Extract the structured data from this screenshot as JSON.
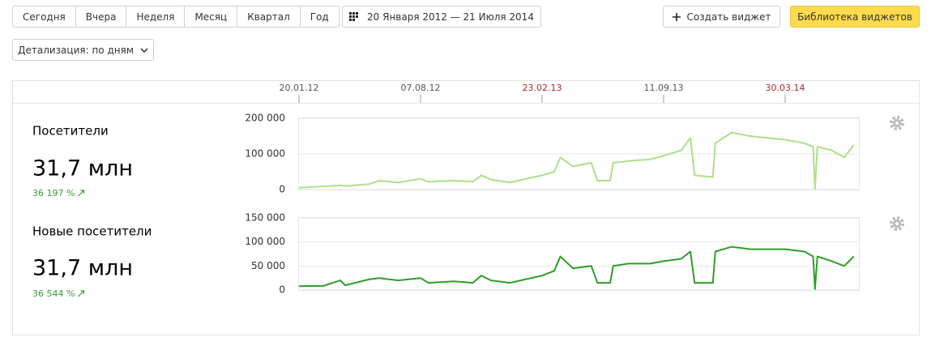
{
  "toolbar": {
    "periods": [
      "Сегодня",
      "Вчера",
      "Неделя",
      "Месяц",
      "Квартал",
      "Год"
    ],
    "date_range": "20 Января 2012 — 21 Июля 2014",
    "create_widget": "Создать виджет",
    "widget_library": "Библиотека виджетов",
    "detail": "Детализация: по дням"
  },
  "timeline": {
    "ticks": [
      {
        "label": "20.01.12",
        "color": "#555555"
      },
      {
        "label": "07.08.12",
        "color": "#555555"
      },
      {
        "label": "23.02.13",
        "color": "#a52a2a"
      },
      {
        "label": "11.09.13",
        "color": "#555555"
      },
      {
        "label": "30.03.14",
        "color": "#a52a2a"
      }
    ]
  },
  "chart_data": [
    {
      "type": "line",
      "title": "Посетители",
      "total": "31,7 млн",
      "change": "36 197 %",
      "color": "#ace08a",
      "xlim": [
        "20.01.12",
        "21.07.14"
      ],
      "x": [
        "20.01.12",
        "01.03.12",
        "28.03.12",
        "05.04.12",
        "14.05.12",
        "31.05.12",
        "01.07.12",
        "07.08.12",
        "20.08.12",
        "01.10.12",
        "01.11.12",
        "15.11.12",
        "01.12.12",
        "01.01.13",
        "23.02.13",
        "15.03.13",
        "25.03.13",
        "15.04.13",
        "15.05.13",
        "25.05.13",
        "15.06.13",
        "20.06.13",
        "15.07.13",
        "20.08.13",
        "11.09.13",
        "10.10.13",
        "25.10.13",
        "01.11.13",
        "01.12.13",
        "05.12.13",
        "01.01.14",
        "01.02.14",
        "01.03.14",
        "30.03.14",
        "01.05.14",
        "15.05.14",
        "18.05.14",
        "22.05.14",
        "15.06.14",
        "05.07.14",
        "21.07.14"
      ],
      "values": [
        5000,
        9000,
        12000,
        10000,
        15000,
        25000,
        20000,
        30000,
        22000,
        25000,
        22000,
        40000,
        28000,
        20000,
        40000,
        50000,
        90000,
        65000,
        75000,
        25000,
        25000,
        75000,
        80000,
        85000,
        95000,
        110000,
        145000,
        40000,
        35000,
        130000,
        160000,
        150000,
        145000,
        140000,
        130000,
        120000,
        2000,
        120000,
        110000,
        90000,
        125000
      ],
      "ylim": [
        0,
        200000
      ],
      "yticks": [
        0,
        {
          "value": 100000,
          "label": "100 000"
        },
        {
          "value": 200000,
          "label": "200 000"
        }
      ]
    },
    {
      "type": "line",
      "title": "Новые посетители",
      "total": "31,7 млн",
      "change": "36 544 %",
      "color": "#2e9e26",
      "xlim": [
        "20.01.12",
        "21.07.14"
      ],
      "x": [
        "20.01.12",
        "01.03.12",
        "28.03.12",
        "05.04.12",
        "14.05.12",
        "31.05.12",
        "01.07.12",
        "07.08.12",
        "20.08.12",
        "01.10.12",
        "01.11.12",
        "15.11.12",
        "01.12.12",
        "01.01.13",
        "23.02.13",
        "15.03.13",
        "25.03.13",
        "15.04.13",
        "15.05.13",
        "25.05.13",
        "15.06.13",
        "20.06.13",
        "15.07.13",
        "20.08.13",
        "11.09.13",
        "10.10.13",
        "25.10.13",
        "01.11.13",
        "01.12.13",
        "05.12.13",
        "01.01.14",
        "01.02.14",
        "01.03.14",
        "30.03.14",
        "01.05.14",
        "15.05.14",
        "18.05.14",
        "22.05.14",
        "15.06.14",
        "05.07.14",
        "21.07.14"
      ],
      "values": [
        8000,
        9000,
        20000,
        10000,
        22000,
        25000,
        20000,
        25000,
        15000,
        18000,
        15000,
        30000,
        20000,
        15000,
        30000,
        40000,
        70000,
        45000,
        50000,
        15000,
        15000,
        50000,
        55000,
        55000,
        60000,
        65000,
        80000,
        15000,
        15000,
        80000,
        90000,
        85000,
        85000,
        85000,
        80000,
        70000,
        2000,
        70000,
        60000,
        50000,
        70000
      ],
      "ylim": [
        0,
        150000
      ],
      "yticks": [
        0,
        {
          "value": 50000,
          "label": "50 000"
        },
        {
          "value": 100000,
          "label": "100 000"
        },
        {
          "value": 150000,
          "label": "150 000"
        }
      ]
    }
  ]
}
